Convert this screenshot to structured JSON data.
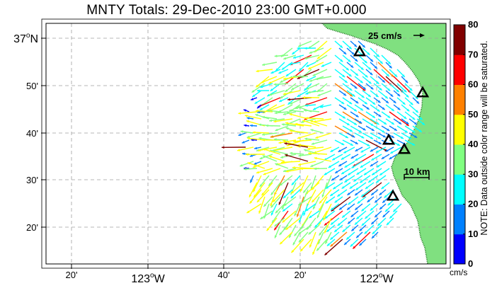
{
  "title": "MNTY Totals: 29-Dec-2010 23:00 GMT+0.000",
  "lon_labels": [
    {
      "id": "lon-20w123",
      "text": "20'"
    },
    {
      "id": "lon-123w",
      "deg": "123",
      "hemi": "W"
    },
    {
      "id": "lon-40w122",
      "text": "40'"
    },
    {
      "id": "lon-20w122",
      "text": "20'"
    },
    {
      "id": "lon-122w",
      "deg": "122",
      "hemi": "W"
    }
  ],
  "lat_labels": [
    {
      "id": "lat-37n",
      "deg": "37",
      "hemi": "N"
    },
    {
      "id": "lat-50",
      "text": "50'"
    },
    {
      "id": "lat-40",
      "text": "40'"
    },
    {
      "id": "lat-30",
      "text": "30'"
    },
    {
      "id": "lat-20",
      "text": "20'"
    }
  ],
  "reference_vector": {
    "label": "25 cm/s"
  },
  "scale_bar": {
    "label": "10 km"
  },
  "colorbar": {
    "ticks": [
      "0",
      "10",
      "20",
      "30",
      "40",
      "50",
      "60",
      "70",
      "80"
    ],
    "colors": [
      "#0000ff",
      "#0080ff",
      "#00ffff",
      "#80ff80",
      "#ffff00",
      "#ff8000",
      "#ff0000",
      "#800000"
    ],
    "unit": "cm/s",
    "note": "NOTE: Data outside color range will be saturated."
  },
  "colors": {
    "land": "#80e080",
    "coast_dots": "#1a6f1a",
    "grid": "#a0a0a0"
  }
}
